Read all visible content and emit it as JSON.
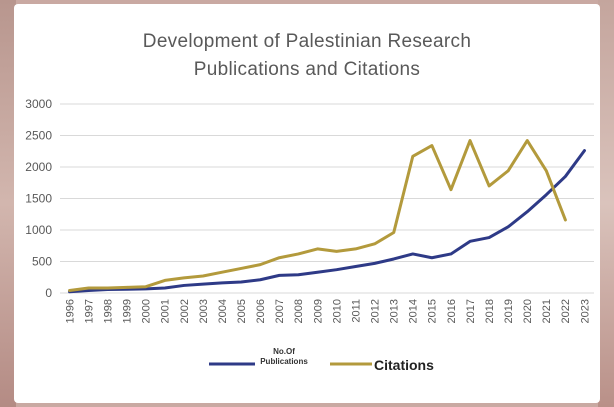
{
  "chart_data": {
    "type": "line",
    "title_line1": "Development of Palestinian Research",
    "title_line2": "Publications and Citations",
    "xlabel": "",
    "ylabel": "",
    "ylim": [
      0,
      3000
    ],
    "y_ticks": [
      "0",
      "500",
      "1000",
      "1500",
      "2000",
      "2500",
      "3000"
    ],
    "grid": true,
    "legend_position": "bottom",
    "categories": [
      "1996",
      "1997",
      "1998",
      "1999",
      "2000",
      "2001",
      "2002",
      "2003",
      "2004",
      "2005",
      "2006",
      "2007",
      "2008",
      "2009",
      "2010",
      "2011",
      "2012",
      "2013",
      "2014",
      "2015",
      "2016",
      "2017",
      "2018",
      "2019",
      "2020",
      "2021",
      "2022",
      "2023"
    ],
    "series": [
      {
        "name": "No.Of Publications",
        "color": "#2e3a87",
        "values": [
          20,
          40,
          55,
          60,
          65,
          80,
          120,
          140,
          160,
          175,
          210,
          280,
          290,
          330,
          370,
          420,
          470,
          540,
          620,
          560,
          620,
          820,
          880,
          1050,
          1290,
          1560,
          1850,
          2260
        ]
      },
      {
        "name": "Citations",
        "color": "#b39a3c",
        "values": [
          40,
          80,
          80,
          90,
          100,
          200,
          240,
          270,
          330,
          390,
          450,
          560,
          620,
          700,
          660,
          700,
          780,
          960,
          2170,
          2340,
          1640,
          2420,
          1700,
          1940,
          2420,
          1940,
          1160,
          null
        ]
      }
    ]
  },
  "legend": {
    "publications_label_line1": "No.Of",
    "publications_label_line2": "Publications",
    "citations_label": "Citations"
  }
}
